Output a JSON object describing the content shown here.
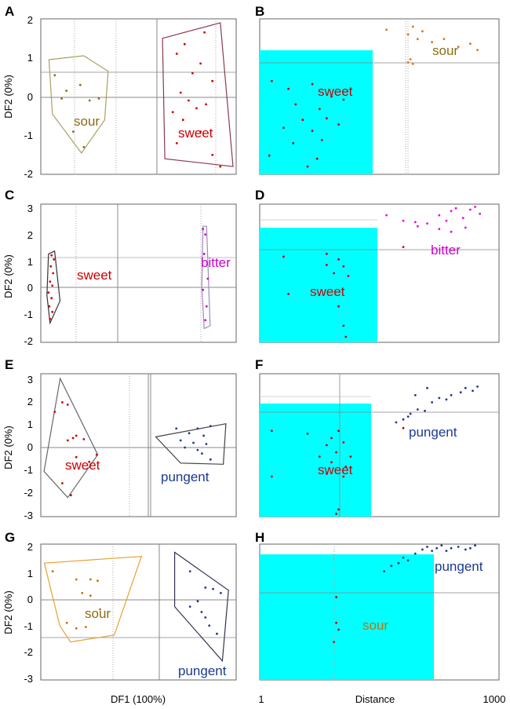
{
  "figure": {
    "x_axis_label_left": "DF1 (100%)",
    "x_axis_label_right": "Distance",
    "x_ticks_right": [
      "1",
      "1000"
    ]
  },
  "chart_data": [
    {
      "id": "A",
      "type": "scatter",
      "label": "A",
      "ylabel": "DF2 (0%)",
      "yticks": [
        2,
        1,
        0,
        -1,
        -2
      ],
      "ylim": [
        -2,
        2
      ],
      "groups": [
        {
          "name": "sour",
          "color": "#8b6c14",
          "hull_color": "#a8a060",
          "hull": [
            [
              0.07,
              0.95
            ],
            [
              0.37,
              1.05
            ],
            [
              0.58,
              0.65
            ],
            [
              0.55,
              -0.6
            ],
            [
              0.35,
              -1.45
            ],
            [
              0.1,
              -0.45
            ]
          ],
          "points": [
            [
              0.12,
              0.55
            ],
            [
              0.22,
              0.15
            ],
            [
              0.18,
              -0.05
            ],
            [
              0.34,
              0.3
            ],
            [
              0.42,
              -0.1
            ],
            [
              0.5,
              -0.05
            ],
            [
              0.37,
              -1.3
            ],
            [
              0.28,
              -0.9
            ]
          ]
        },
        {
          "name": "sweet",
          "color": "#cc0000",
          "hull_color": "#8b3a4a",
          "hull": [
            [
              0.07,
              1.5
            ],
            [
              0.8,
              1.9
            ],
            [
              0.96,
              -1.8
            ],
            [
              0.1,
              -1.6
            ]
          ],
          "points": [
            [
              0.35,
              1.35
            ],
            [
              0.6,
              1.65
            ],
            [
              0.25,
              1.1
            ],
            [
              0.55,
              0.85
            ],
            [
              0.45,
              0.6
            ],
            [
              0.7,
              0.4
            ],
            [
              0.3,
              0.1
            ],
            [
              0.4,
              -0.1
            ],
            [
              0.5,
              -0.3
            ],
            [
              0.2,
              -0.4
            ],
            [
              0.62,
              -0.2
            ],
            [
              0.33,
              -0.6
            ],
            [
              0.55,
              -0.9
            ],
            [
              0.25,
              -1.2
            ],
            [
              0.7,
              -1.5
            ],
            [
              0.8,
              -1.8
            ]
          ]
        }
      ]
    },
    {
      "id": "B",
      "type": "scatter",
      "label": "B",
      "groups": [
        {
          "name": "sour",
          "color": "#e07020",
          "points": [
            [
              0.53,
              0.93
            ],
            [
              0.62,
              0.9
            ],
            [
              0.64,
              0.95
            ],
            [
              0.66,
              0.87
            ],
            [
              0.68,
              0.92
            ],
            [
              0.72,
              0.85
            ],
            [
              0.77,
              0.87
            ],
            [
              0.83,
              0.82
            ],
            [
              0.88,
              0.84
            ],
            [
              0.91,
              0.8
            ],
            [
              0.62,
              0.72
            ],
            [
              0.63,
              0.74
            ],
            [
              0.64,
              0.71
            ]
          ]
        },
        {
          "name": "sweet",
          "color": "#cc0000",
          "points": [
            [
              0.05,
              0.6
            ],
            [
              0.12,
              0.55
            ],
            [
              0.22,
              0.58
            ],
            [
              0.3,
              0.5
            ],
            [
              0.15,
              0.45
            ],
            [
              0.25,
              0.42
            ],
            [
              0.35,
              0.48
            ],
            [
              0.18,
              0.35
            ],
            [
              0.28,
              0.36
            ],
            [
              0.1,
              0.3
            ],
            [
              0.22,
              0.28
            ],
            [
              0.33,
              0.32
            ],
            [
              0.14,
              0.2
            ],
            [
              0.26,
              0.22
            ],
            [
              0.04,
              0.12
            ],
            [
              0.24,
              0.1
            ],
            [
              0.2,
              0.05
            ]
          ]
        }
      ]
    },
    {
      "id": "C",
      "type": "scatter",
      "label": "C",
      "ylabel": "DF2 (0%)",
      "yticks": [
        3,
        2,
        1,
        0,
        -1,
        -2
      ],
      "ylim": [
        -2,
        3
      ],
      "groups": [
        {
          "name": "sweet",
          "color": "#cc0000",
          "hull_color": "#333333",
          "hull": [
            [
              0.1,
              1.2
            ],
            [
              0.18,
              1.3
            ],
            [
              0.25,
              -0.5
            ],
            [
              0.12,
              -1.3
            ],
            [
              0.08,
              -0.3
            ]
          ],
          "points": [
            [
              0.14,
              1.15
            ],
            [
              0.17,
              1.0
            ],
            [
              0.13,
              0.75
            ],
            [
              0.16,
              0.5
            ],
            [
              0.12,
              0.2
            ],
            [
              0.15,
              0.05
            ],
            [
              0.1,
              -0.2
            ],
            [
              0.14,
              -0.4
            ],
            [
              0.11,
              -0.7
            ],
            [
              0.15,
              -0.9
            ],
            [
              0.12,
              -1.15
            ]
          ]
        },
        {
          "name": "bitter",
          "color": "#cc00cc",
          "hull_color": "#a08cb8",
          "hull": [
            [
              0.72,
              2.2
            ],
            [
              0.75,
              2.2
            ],
            [
              0.78,
              -1.4
            ],
            [
              0.73,
              -1.5
            ],
            [
              0.71,
              0
            ]
          ],
          "points": [
            [
              0.72,
              2.1
            ],
            [
              0.74,
              1.9
            ],
            [
              0.73,
              1.2
            ],
            [
              0.76,
              0.3
            ],
            [
              0.72,
              -0.1
            ],
            [
              0.75,
              -0.7
            ],
            [
              0.74,
              -1.2
            ]
          ]
        }
      ]
    },
    {
      "id": "D",
      "type": "scatter",
      "label": "D",
      "groups": [
        {
          "name": "bitter",
          "color": "#ee00ee",
          "points": [
            [
              0.53,
              0.92
            ],
            [
              0.6,
              0.88
            ],
            [
              0.65,
              0.87
            ],
            [
              0.66,
              0.84
            ],
            [
              0.7,
              0.86
            ],
            [
              0.75,
              0.92
            ],
            [
              0.78,
              0.88
            ],
            [
              0.8,
              0.95
            ],
            [
              0.82,
              0.97
            ],
            [
              0.85,
              0.9
            ],
            [
              0.88,
              0.96
            ],
            [
              0.9,
              0.98
            ],
            [
              0.92,
              0.93
            ],
            [
              0.86,
              0.83
            ],
            [
              0.8,
              0.8
            ],
            [
              0.75,
              0.82
            ]
          ]
        },
        {
          "name": "sweet",
          "color": "#cc0000",
          "points": [
            [
              0.1,
              0.62
            ],
            [
              0.28,
              0.64
            ],
            [
              0.33,
              0.6
            ],
            [
              0.35,
              0.55
            ],
            [
              0.31,
              0.5
            ],
            [
              0.37,
              0.48
            ],
            [
              0.28,
              0.56
            ],
            [
              0.12,
              0.35
            ],
            [
              0.33,
              0.26
            ],
            [
              0.35,
              0.12
            ],
            [
              0.36,
              0.04
            ],
            [
              0.6,
              0.69
            ]
          ]
        }
      ]
    },
    {
      "id": "E",
      "type": "scatter",
      "label": "E",
      "ylabel": "DF2 (0%)",
      "yticks": [
        3,
        2,
        1,
        0,
        -1,
        -2,
        -3
      ],
      "ylim": [
        -3,
        3
      ],
      "groups": [
        {
          "name": "sweet",
          "color": "#cc0000",
          "hull_color": "#666666",
          "hull": [
            [
              0.18,
              2.8
            ],
            [
              0.53,
              -0.4
            ],
            [
              0.25,
              -2.2
            ],
            [
              0.03,
              -1.1
            ]
          ],
          "points": [
            [
              0.13,
              1.4
            ],
            [
              0.2,
              1.8
            ],
            [
              0.25,
              1.7
            ],
            [
              0.33,
              0.4
            ],
            [
              0.3,
              0.3
            ],
            [
              0.4,
              0.25
            ],
            [
              0.25,
              0.2
            ],
            [
              0.33,
              -0.5
            ],
            [
              0.45,
              -0.7
            ],
            [
              0.52,
              -0.4
            ],
            [
              0.28,
              -2.1
            ],
            [
              0.2,
              -1.6
            ]
          ]
        },
        {
          "name": "pungent",
          "color": "#1a3a8f",
          "hull_color": "#444444",
          "hull": [
            [
              0.06,
              0.35
            ],
            [
              0.88,
              0.9
            ],
            [
              0.85,
              -0.8
            ],
            [
              0.35,
              -0.75
            ]
          ],
          "points": [
            [
              0.3,
              0.7
            ],
            [
              0.55,
              0.7
            ],
            [
              0.7,
              0.8
            ],
            [
              0.45,
              0.5
            ],
            [
              0.62,
              0.4
            ],
            [
              0.35,
              0.2
            ],
            [
              0.5,
              0.1
            ],
            [
              0.65,
              0.05
            ],
            [
              0.4,
              -0.1
            ],
            [
              0.55,
              -0.2
            ],
            [
              0.6,
              -0.35
            ],
            [
              0.7,
              -0.6
            ]
          ]
        }
      ]
    },
    {
      "id": "F",
      "type": "scatter",
      "label": "F",
      "groups": [
        {
          "name": "pungent",
          "color": "#1a3a8f",
          "points": [
            [
              0.57,
              0.66
            ],
            [
              0.6,
              0.68
            ],
            [
              0.63,
              0.72
            ],
            [
              0.66,
              0.75
            ],
            [
              0.69,
              0.74
            ],
            [
              0.72,
              0.8
            ],
            [
              0.75,
              0.83
            ],
            [
              0.78,
              0.82
            ],
            [
              0.8,
              0.85
            ],
            [
              0.84,
              0.87
            ],
            [
              0.86,
              0.9
            ],
            [
              0.89,
              0.88
            ],
            [
              0.91,
              0.91
            ],
            [
              0.7,
              0.9
            ],
            [
              0.65,
              0.85
            ],
            [
              0.62,
              0.7
            ]
          ]
        },
        {
          "name": "sweet",
          "color": "#cc0000",
          "points": [
            [
              0.05,
              0.6
            ],
            [
              0.2,
              0.58
            ],
            [
              0.3,
              0.55
            ],
            [
              0.33,
              0.6
            ],
            [
              0.28,
              0.5
            ],
            [
              0.35,
              0.52
            ],
            [
              0.32,
              0.45
            ],
            [
              0.25,
              0.42
            ],
            [
              0.38,
              0.42
            ],
            [
              0.3,
              0.38
            ],
            [
              0.36,
              0.35
            ],
            [
              0.35,
              0.28
            ],
            [
              0.28,
              0.3
            ],
            [
              0.05,
              0.28
            ],
            [
              0.33,
              0.05
            ],
            [
              0.32,
              0.02
            ],
            [
              0.6,
              0.62
            ]
          ]
        }
      ]
    },
    {
      "id": "G",
      "type": "scatter",
      "label": "G",
      "ylabel": "DF2 (0%)",
      "yticks": [
        2,
        1,
        0,
        -1,
        -2,
        -3
      ],
      "ylim": [
        -3,
        2
      ],
      "groups": [
        {
          "name": "sour",
          "color": "#c87000",
          "hull_color": "#e8a030",
          "hull": [
            [
              0.03,
              1.3
            ],
            [
              0.85,
              1.55
            ],
            [
              0.62,
              -1.35
            ],
            [
              0.25,
              -1.6
            ],
            [
              0.16,
              -1.0
            ]
          ],
          "points": [
            [
              0.1,
              1.0
            ],
            [
              0.3,
              0.7
            ],
            [
              0.42,
              0.7
            ],
            [
              0.48,
              0.65
            ],
            [
              0.35,
              0.2
            ],
            [
              0.42,
              0.1
            ],
            [
              0.22,
              -0.9
            ],
            [
              0.3,
              -1.1
            ],
            [
              0.38,
              -1.05
            ],
            [
              0.5,
              -0.4
            ]
          ]
        },
        {
          "name": "pungent",
          "color": "#1a3a8f",
          "hull_color": "#333355",
          "hull": [
            [
              0.2,
              1.7
            ],
            [
              0.9,
              0.3
            ],
            [
              0.82,
              -2.3
            ],
            [
              0.2,
              -0.3
            ]
          ],
          "points": [
            [
              0.4,
              1.0
            ],
            [
              0.6,
              0.4
            ],
            [
              0.7,
              0.35
            ],
            [
              0.8,
              0.2
            ],
            [
              0.5,
              -0.1
            ],
            [
              0.4,
              -0.3
            ],
            [
              0.55,
              -0.5
            ],
            [
              0.6,
              -0.7
            ],
            [
              0.65,
              -1.0
            ],
            [
              0.75,
              -1.3
            ]
          ]
        }
      ]
    },
    {
      "id": "H",
      "type": "scatter",
      "label": "H",
      "groups": [
        {
          "name": "pungent",
          "color": "#1a3a8f",
          "points": [
            [
              0.6,
              0.9
            ],
            [
              0.62,
              0.88
            ],
            [
              0.65,
              0.93
            ],
            [
              0.68,
              0.96
            ],
            [
              0.7,
              0.98
            ],
            [
              0.72,
              0.95
            ],
            [
              0.74,
              0.97
            ],
            [
              0.76,
              0.99
            ],
            [
              0.78,
              0.95
            ],
            [
              0.8,
              0.97
            ],
            [
              0.83,
              0.98
            ],
            [
              0.86,
              0.96
            ],
            [
              0.88,
              0.97
            ],
            [
              0.9,
              0.99
            ],
            [
              0.58,
              0.86
            ],
            [
              0.55,
              0.84
            ],
            [
              0.52,
              0.8
            ]
          ]
        },
        {
          "name": "sour",
          "color": "#cc0000",
          "points": [
            [
              0.32,
              0.61
            ],
            [
              0.32,
              0.42
            ],
            [
              0.33,
              0.37
            ],
            [
              0.31,
              0.28
            ]
          ]
        }
      ]
    }
  ],
  "colors": {
    "panel_border": "#555555",
    "axis_line": "#888888",
    "dotted_line": "#999999",
    "cyan_fill": "#00ffff"
  }
}
